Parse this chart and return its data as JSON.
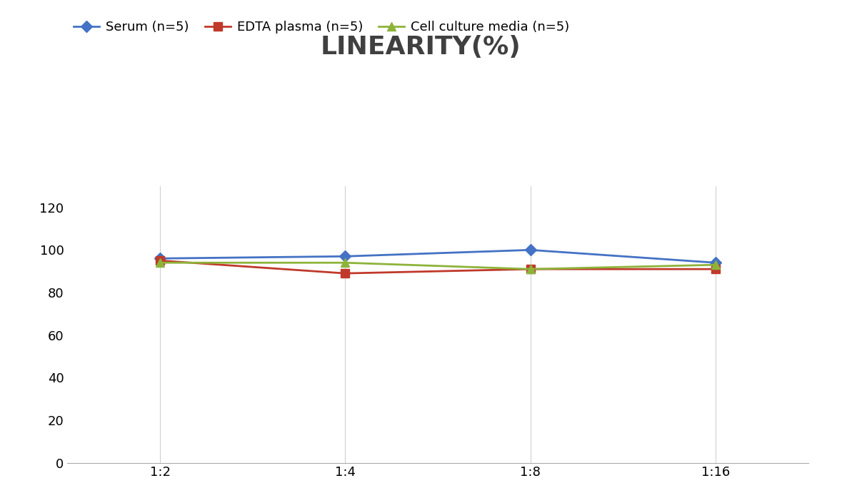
{
  "title": "LINEARITY(%)",
  "x_labels": [
    "1:2",
    "1:4",
    "1:8",
    "1:16"
  ],
  "series": [
    {
      "label": "Serum (n=5)",
      "values": [
        96,
        97,
        100,
        94
      ],
      "color": "#4472C4",
      "marker": "D",
      "marker_color": "#4472C4"
    },
    {
      "label": "EDTA plasma (n=5)",
      "values": [
        95,
        89,
        91,
        91
      ],
      "color": "#C0392B",
      "marker": "s",
      "marker_color": "#C0392B"
    },
    {
      "label": "Cell culture media (n=5)",
      "values": [
        94,
        94,
        91,
        93
      ],
      "color": "#8DB33A",
      "marker": "^",
      "marker_color": "#8DB33A"
    }
  ],
  "ylim": [
    0,
    130
  ],
  "yticks": [
    0,
    20,
    40,
    60,
    80,
    100,
    120
  ],
  "background_color": "#ffffff",
  "grid_color": "#d0d0d0",
  "title_fontsize": 26,
  "legend_fontsize": 13,
  "tick_fontsize": 13
}
